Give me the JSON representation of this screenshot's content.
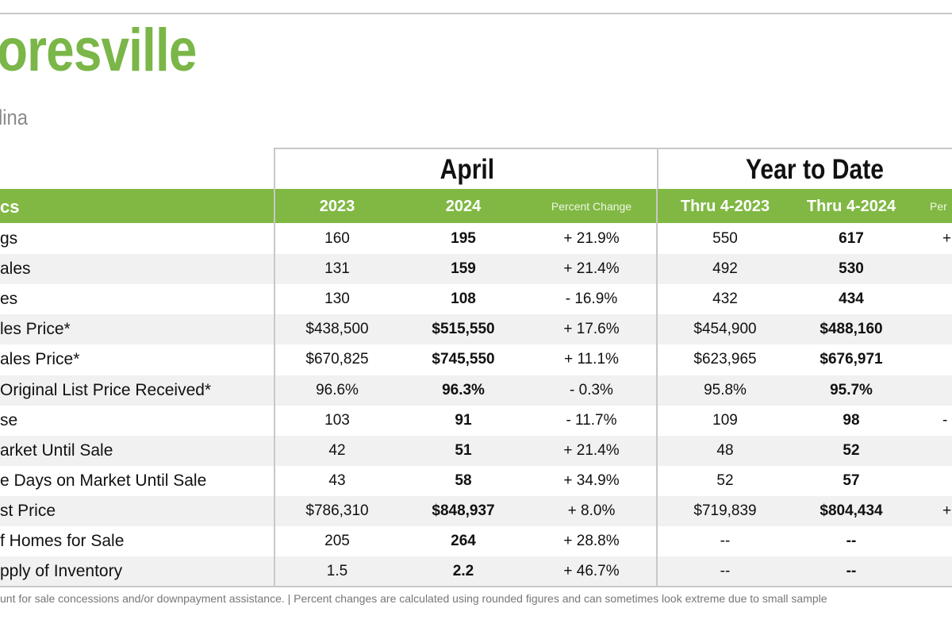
{
  "header": {
    "title": "oresville",
    "subtitle": "lina"
  },
  "groups": {
    "month": "April",
    "ytd": "Year to Date"
  },
  "columns": {
    "label": "cs",
    "m2023": "2023",
    "m2024": "2024",
    "mpct": "Percent Change",
    "y2023": "Thru 4-2023",
    "y2024": "Thru 4-2024",
    "ypct": "Per"
  },
  "rows": [
    {
      "label": "gs",
      "m2023": "160",
      "m2024": "195",
      "mpct": "+ 21.9%",
      "y2023": "550",
      "y2024": "617",
      "ypct": "+"
    },
    {
      "label": "ales",
      "m2023": "131",
      "m2024": "159",
      "mpct": "+ 21.4%",
      "y2023": "492",
      "y2024": "530",
      "ypct": ""
    },
    {
      "label": "es",
      "m2023": "130",
      "m2024": "108",
      "mpct": "- 16.9%",
      "y2023": "432",
      "y2024": "434",
      "ypct": ""
    },
    {
      "label": "les Price*",
      "m2023": "$438,500",
      "m2024": "$515,550",
      "mpct": "+ 17.6%",
      "y2023": "$454,900",
      "y2024": "$488,160",
      "ypct": ""
    },
    {
      "label": "ales Price*",
      "m2023": "$670,825",
      "m2024": "$745,550",
      "mpct": "+ 11.1%",
      "y2023": "$623,965",
      "y2024": "$676,971",
      "ypct": ""
    },
    {
      "label": " Original List Price Received*",
      "m2023": "96.6%",
      "m2024": "96.3%",
      "mpct": "- 0.3%",
      "y2023": "95.8%",
      "y2024": "95.7%",
      "ypct": ""
    },
    {
      "label": "se",
      "m2023": "103",
      "m2024": "91",
      "mpct": "- 11.7%",
      "y2023": "109",
      "y2024": "98",
      "ypct": "-"
    },
    {
      "label": "arket Until Sale",
      "m2023": "42",
      "m2024": "51",
      "mpct": "+ 21.4%",
      "y2023": "48",
      "y2024": "52",
      "ypct": ""
    },
    {
      "label": "e Days on Market Until Sale",
      "m2023": "43",
      "m2024": "58",
      "mpct": "+ 34.9%",
      "y2023": "52",
      "y2024": "57",
      "ypct": ""
    },
    {
      "label": "st Price",
      "m2023": "$786,310",
      "m2024": "$848,937",
      "mpct": "+ 8.0%",
      "y2023": "$719,839",
      "y2024": "$804,434",
      "ypct": "+"
    },
    {
      "label": "f Homes for Sale",
      "m2023": "205",
      "m2024": "264",
      "mpct": "+ 28.8%",
      "y2023": "--",
      "y2024": "--",
      "ypct": ""
    },
    {
      "label": "pply of Inventory",
      "m2023": "1.5",
      "m2024": "2.2",
      "mpct": "+ 46.7%",
      "y2023": "--",
      "y2024": "--",
      "ypct": ""
    }
  ],
  "footer": "unt for sale concessions and/or downpayment assistance.  |  Percent changes are calculated using rounded figures and can sometimes look extreme due to small sample",
  "colors": {
    "brand_green": "#7ab648",
    "header_bar": "#80b843",
    "alt_row": "#f1f1f1"
  }
}
